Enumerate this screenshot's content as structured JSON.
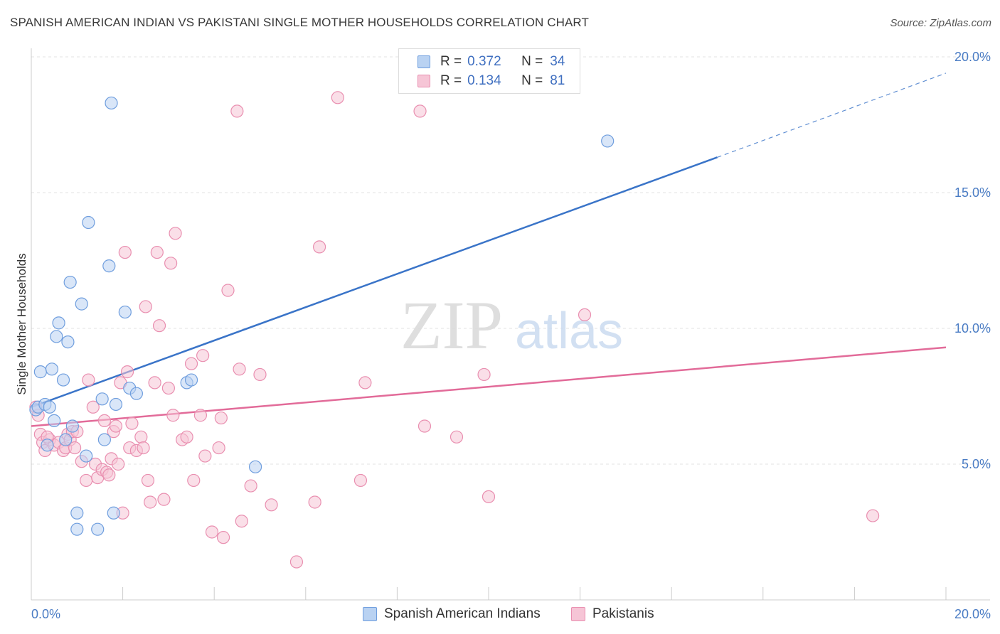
{
  "header": {
    "title": "SPANISH AMERICAN INDIAN VS PAKISTANI SINGLE MOTHER HOUSEHOLDS CORRELATION CHART",
    "source": "Source: ZipAtlas.com"
  },
  "watermark": {
    "zip": "ZIP",
    "atlas": "atlas"
  },
  "legend": {
    "rows": [
      {
        "r_label": "R =",
        "r_value": "0.372",
        "n_label": "N =",
        "n_value": "34"
      },
      {
        "r_label": "R =",
        "r_value": "0.134",
        "n_label": "N =",
        "n_value": "81"
      }
    ]
  },
  "bottom_legend": {
    "items": [
      "Spanish American Indians",
      "Pakistanis"
    ]
  },
  "colors": {
    "blue_fill": "#b9d2f2",
    "blue_stroke": "#6f9ede",
    "blue_line": "#3a74c8",
    "pink_fill": "#f6c5d6",
    "pink_stroke": "#e98fb0",
    "pink_line": "#e26b99",
    "tick_text": "#4a7cc4"
  },
  "chart_data": {
    "type": "scatter",
    "title": "SPANISH AMERICAN INDIAN VS PAKISTANI SINGLE MOTHER HOUSEHOLDS CORRELATION CHART",
    "xlabel": "",
    "ylabel": "Single Mother Households",
    "xlim": [
      0,
      20
    ],
    "ylim": [
      0,
      20
    ],
    "x_ticks": [
      "0.0%",
      "20.0%"
    ],
    "y_ticks": [
      "5.0%",
      "10.0%",
      "15.0%",
      "20.0%"
    ],
    "y_tick_values": [
      5,
      10,
      15,
      20
    ],
    "grid": true,
    "legend_position": "top-center",
    "series": [
      {
        "name": "Spanish American Indians",
        "r": 0.372,
        "n": 34,
        "trend": {
          "x": [
            0,
            15
          ],
          "y": [
            7.1,
            16.3
          ],
          "dashed_to": [
            20,
            19.4
          ]
        },
        "points": [
          [
            0.1,
            7.0
          ],
          [
            0.15,
            7.1
          ],
          [
            0.2,
            8.4
          ],
          [
            0.3,
            7.2
          ],
          [
            0.35,
            5.7
          ],
          [
            0.4,
            7.1
          ],
          [
            0.45,
            8.5
          ],
          [
            0.5,
            6.6
          ],
          [
            0.55,
            9.7
          ],
          [
            0.6,
            10.2
          ],
          [
            0.7,
            8.1
          ],
          [
            0.75,
            5.9
          ],
          [
            0.8,
            9.5
          ],
          [
            0.85,
            11.7
          ],
          [
            0.9,
            6.4
          ],
          [
            1.0,
            3.2
          ],
          [
            1.0,
            2.6
          ],
          [
            1.1,
            10.9
          ],
          [
            1.2,
            5.3
          ],
          [
            1.25,
            13.9
          ],
          [
            1.45,
            2.6
          ],
          [
            1.55,
            7.4
          ],
          [
            1.6,
            5.9
          ],
          [
            1.7,
            12.3
          ],
          [
            1.75,
            18.3
          ],
          [
            1.8,
            3.2
          ],
          [
            1.85,
            7.2
          ],
          [
            2.05,
            10.6
          ],
          [
            2.15,
            7.8
          ],
          [
            2.3,
            7.6
          ],
          [
            3.4,
            8.0
          ],
          [
            3.5,
            8.1
          ],
          [
            4.9,
            4.9
          ],
          [
            12.6,
            16.9
          ]
        ]
      },
      {
        "name": "Pakistanis",
        "r": 0.134,
        "n": 81,
        "trend": {
          "x": [
            0,
            20
          ],
          "y": [
            6.4,
            9.3
          ]
        },
        "points": [
          [
            0.1,
            7.1
          ],
          [
            0.2,
            6.1
          ],
          [
            0.25,
            5.8
          ],
          [
            0.3,
            5.5
          ],
          [
            0.4,
            5.9
          ],
          [
            0.5,
            5.7
          ],
          [
            0.6,
            5.8
          ],
          [
            0.7,
            5.5
          ],
          [
            0.75,
            5.6
          ],
          [
            0.8,
            6.1
          ],
          [
            0.85,
            5.9
          ],
          [
            0.9,
            6.2
          ],
          [
            0.95,
            5.6
          ],
          [
            1.0,
            6.2
          ],
          [
            1.1,
            5.1
          ],
          [
            1.2,
            4.4
          ],
          [
            1.25,
            8.1
          ],
          [
            1.35,
            7.1
          ],
          [
            1.4,
            5.0
          ],
          [
            1.45,
            4.5
          ],
          [
            1.55,
            4.8
          ],
          [
            1.6,
            6.6
          ],
          [
            1.65,
            4.7
          ],
          [
            1.7,
            4.6
          ],
          [
            1.75,
            5.2
          ],
          [
            1.8,
            6.2
          ],
          [
            1.85,
            6.4
          ],
          [
            1.9,
            5.0
          ],
          [
            1.95,
            8.0
          ],
          [
            2.0,
            3.2
          ],
          [
            2.05,
            12.8
          ],
          [
            2.1,
            8.4
          ],
          [
            2.15,
            5.6
          ],
          [
            2.2,
            6.5
          ],
          [
            2.3,
            5.5
          ],
          [
            2.4,
            6.0
          ],
          [
            2.45,
            5.6
          ],
          [
            2.5,
            10.8
          ],
          [
            2.55,
            4.4
          ],
          [
            2.6,
            3.6
          ],
          [
            2.7,
            8.0
          ],
          [
            2.75,
            12.8
          ],
          [
            2.8,
            10.1
          ],
          [
            2.9,
            3.7
          ],
          [
            3.0,
            7.8
          ],
          [
            3.05,
            12.4
          ],
          [
            3.1,
            6.8
          ],
          [
            3.15,
            13.5
          ],
          [
            3.3,
            5.9
          ],
          [
            3.4,
            6.0
          ],
          [
            3.5,
            8.7
          ],
          [
            3.55,
            4.4
          ],
          [
            3.7,
            6.8
          ],
          [
            3.75,
            9.0
          ],
          [
            3.8,
            5.3
          ],
          [
            3.95,
            2.5
          ],
          [
            4.1,
            5.6
          ],
          [
            4.15,
            6.7
          ],
          [
            4.2,
            2.3
          ],
          [
            4.3,
            11.4
          ],
          [
            4.5,
            18.0
          ],
          [
            4.55,
            8.5
          ],
          [
            4.6,
            2.9
          ],
          [
            4.8,
            4.2
          ],
          [
            5.0,
            8.3
          ],
          [
            5.25,
            3.5
          ],
          [
            5.8,
            1.4
          ],
          [
            6.2,
            3.6
          ],
          [
            6.3,
            13.0
          ],
          [
            6.7,
            18.5
          ],
          [
            7.2,
            4.4
          ],
          [
            7.3,
            8.0
          ],
          [
            8.5,
            18.0
          ],
          [
            8.6,
            6.4
          ],
          [
            9.3,
            6.0
          ],
          [
            9.9,
            8.3
          ],
          [
            10.0,
            3.8
          ],
          [
            12.1,
            10.5
          ],
          [
            18.4,
            3.1
          ],
          [
            0.15,
            6.8
          ],
          [
            0.35,
            6.0
          ]
        ]
      }
    ]
  }
}
